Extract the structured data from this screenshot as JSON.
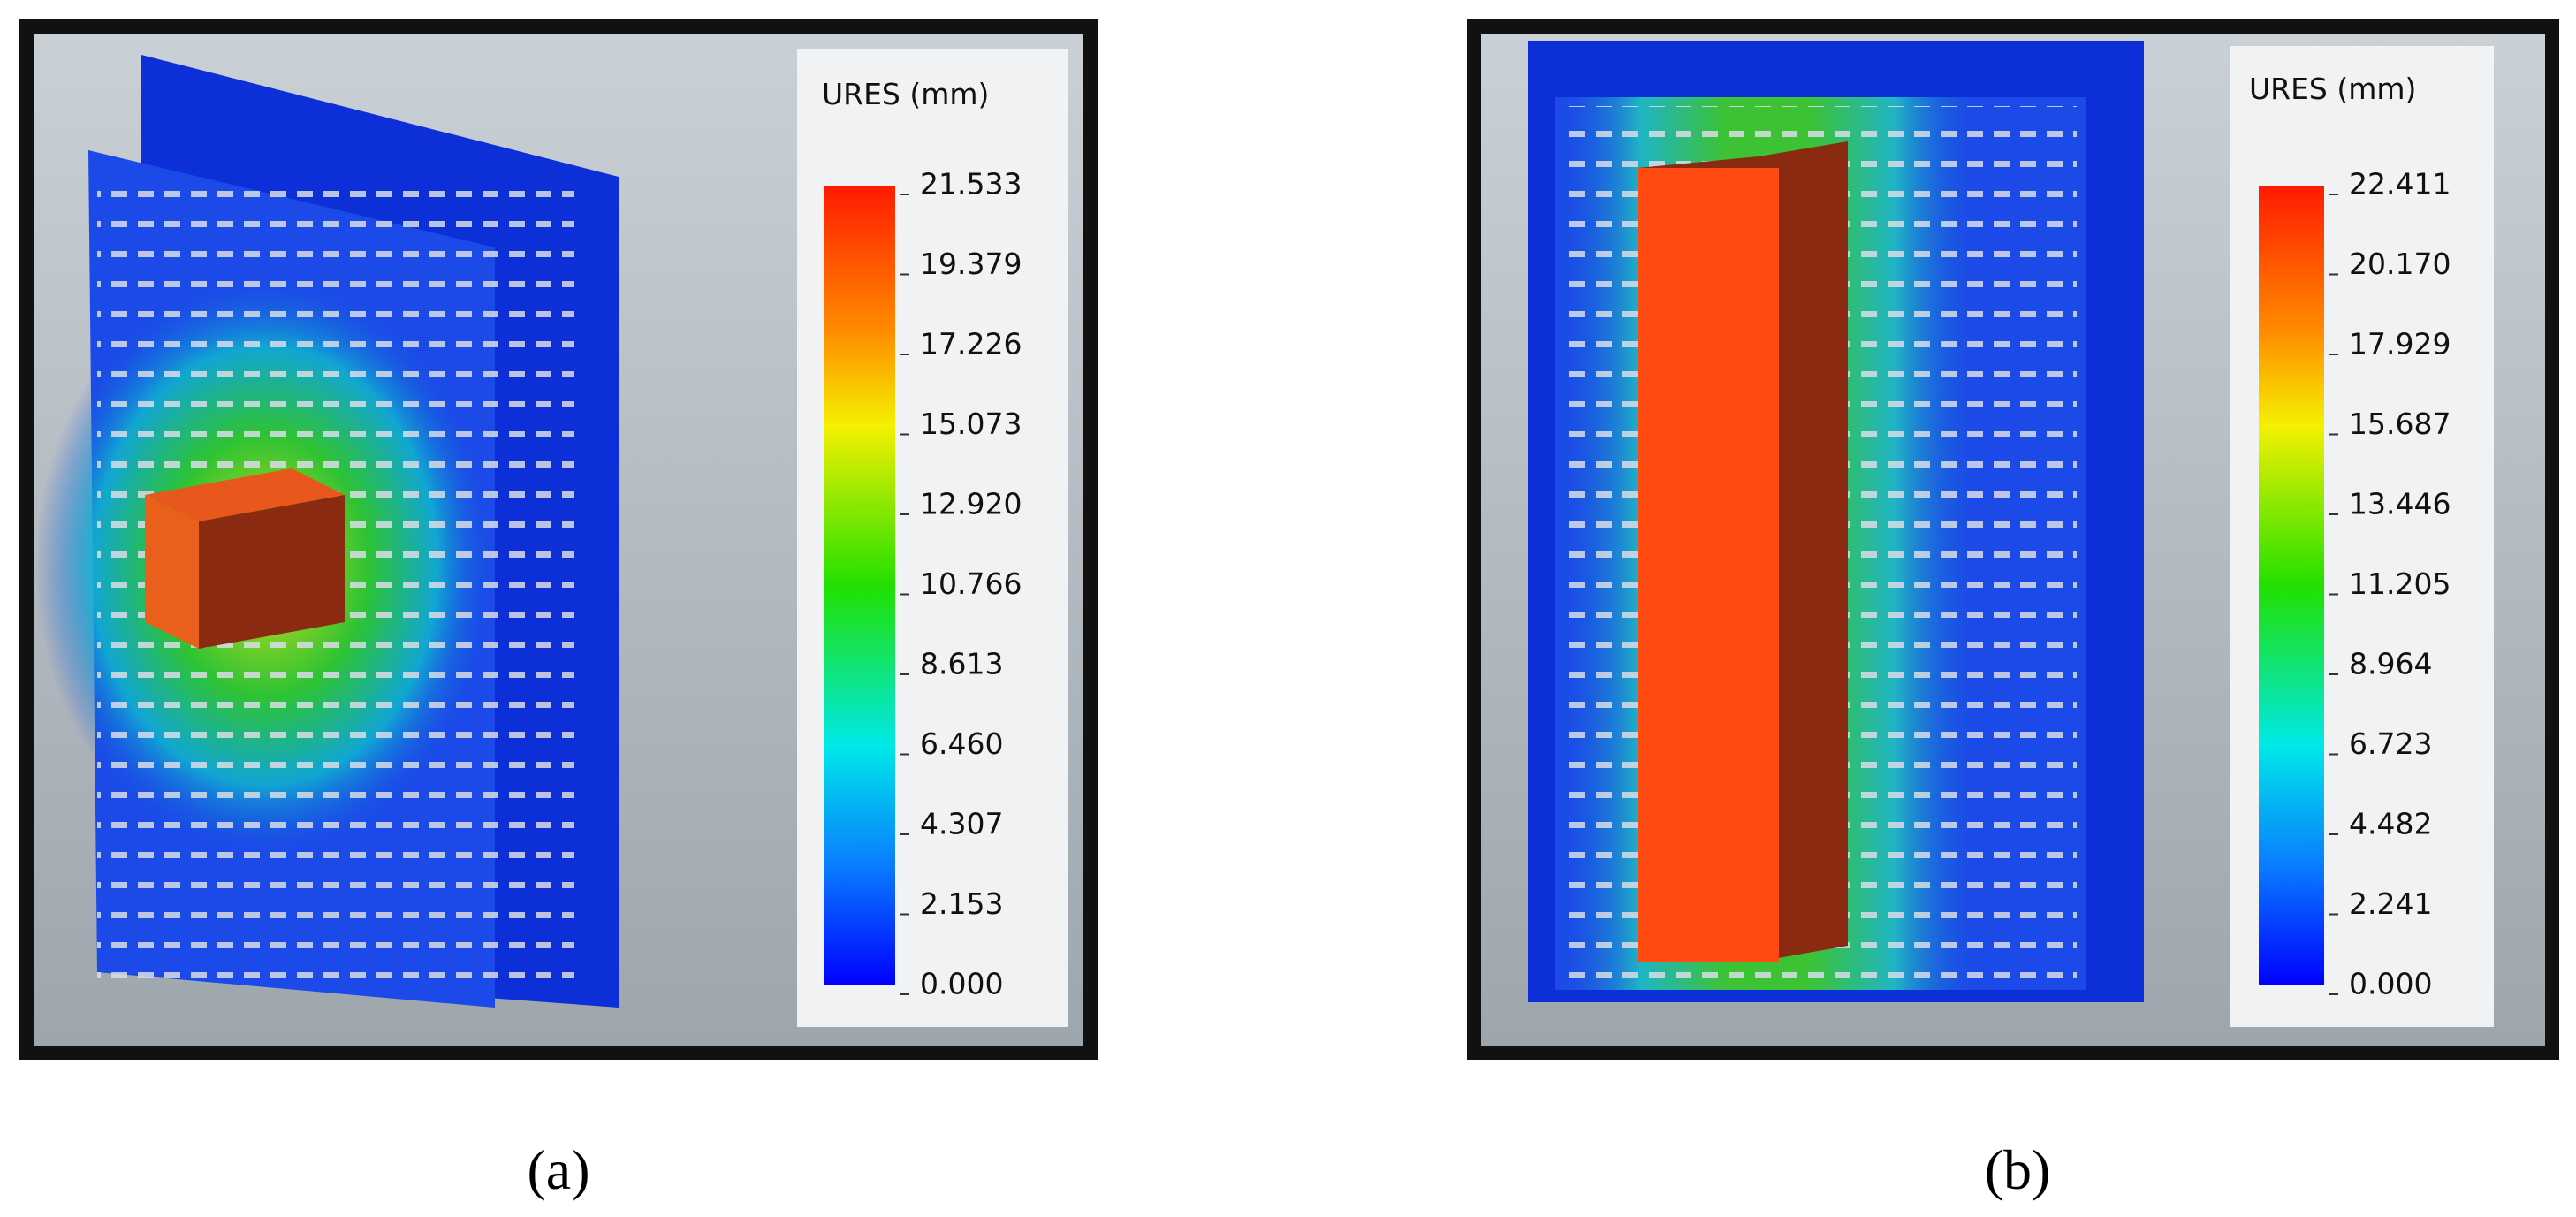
{
  "panels": [
    {
      "label": "(a)",
      "legend": {
        "title": "URES (mm)",
        "ticks": [
          "21.533",
          "19.379",
          "17.226",
          "15.073",
          "12.920",
          "10.766",
          "8.613",
          "6.460",
          "4.307",
          "2.153",
          "0.000"
        ]
      }
    },
    {
      "label": "(b)",
      "legend": {
        "title": "URES (mm)",
        "ticks": [
          "22.411",
          "20.170",
          "17.929",
          "15.687",
          "13.446",
          "11.205",
          "8.964",
          "6.723",
          "4.482",
          "2.241",
          "0.000"
        ]
      }
    }
  ]
}
